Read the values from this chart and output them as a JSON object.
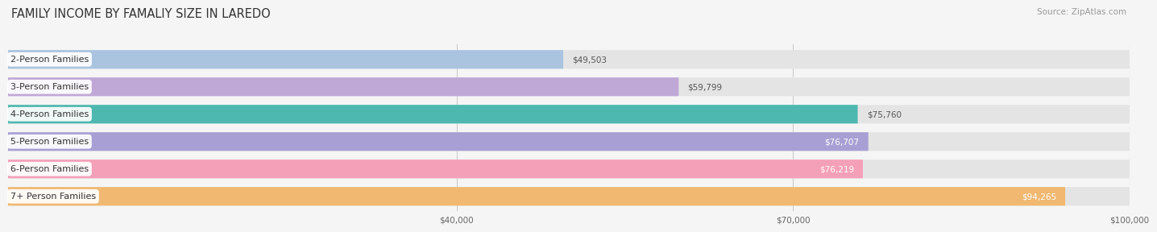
{
  "title": "FAMILY INCOME BY FAMALIY SIZE IN LAREDO",
  "source": "Source: ZipAtlas.com",
  "categories": [
    "2-Person Families",
    "3-Person Families",
    "4-Person Families",
    "5-Person Families",
    "6-Person Families",
    "7+ Person Families"
  ],
  "values": [
    49503,
    59799,
    75760,
    76707,
    76219,
    94265
  ],
  "bar_colors": [
    "#aac4e0",
    "#c0a8d6",
    "#4db8b0",
    "#a8a0d4",
    "#f4a0b8",
    "#f0b870"
  ],
  "value_inside": [
    false,
    false,
    false,
    true,
    true,
    true
  ],
  "xmin": 0,
  "xmax": 100000,
  "xticks": [
    40000,
    70000,
    100000
  ],
  "xtick_labels": [
    "$40,000",
    "$70,000",
    "$100,000"
  ],
  "background_color": "#f5f5f5",
  "bar_bg_color": "#e4e4e4",
  "title_fontsize": 10.5,
  "source_fontsize": 7.5,
  "value_fontsize": 7.5,
  "category_fontsize": 8
}
